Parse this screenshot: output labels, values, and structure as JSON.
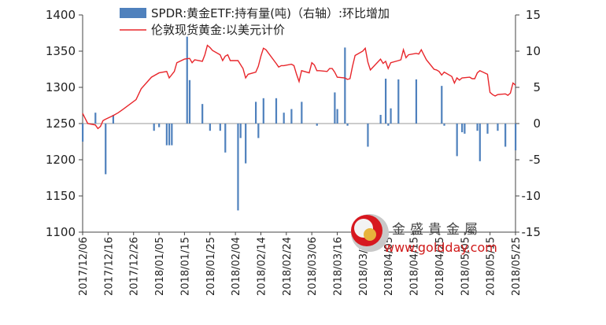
{
  "chart_data": {
    "type": "bar+line",
    "title": "",
    "series": [
      {
        "name": "SPDR:黄金ETF:持有量(吨)（右轴）:环比增加",
        "kind": "bar",
        "axis": "right",
        "color": "#4f81bd",
        "values": [
          {
            "x": "2017-12-06",
            "y": -2.5
          },
          {
            "x": "2017-12-11",
            "y": 1.5
          },
          {
            "x": "2017-12-15",
            "y": -7
          },
          {
            "x": "2017-12-18",
            "y": 1.2
          },
          {
            "x": "2018-01-03",
            "y": -1
          },
          {
            "x": "2018-01-05",
            "y": -0.5
          },
          {
            "x": "2018-01-08",
            "y": -3
          },
          {
            "x": "2018-01-09",
            "y": -3
          },
          {
            "x": "2018-01-10",
            "y": -3
          },
          {
            "x": "2018-01-16",
            "y": 12
          },
          {
            "x": "2018-01-17",
            "y": 6
          },
          {
            "x": "2018-01-22",
            "y": 2.7
          },
          {
            "x": "2018-01-25",
            "y": -1
          },
          {
            "x": "2018-01-29",
            "y": -1
          },
          {
            "x": "2018-01-31",
            "y": -4
          },
          {
            "x": "2018-02-05",
            "y": -12
          },
          {
            "x": "2018-02-06",
            "y": -2
          },
          {
            "x": "2018-02-08",
            "y": -5.5
          },
          {
            "x": "2018-02-12",
            "y": 3
          },
          {
            "x": "2018-02-13",
            "y": -2
          },
          {
            "x": "2018-02-15",
            "y": 3.5
          },
          {
            "x": "2018-02-20",
            "y": 3.5
          },
          {
            "x": "2018-02-23",
            "y": 1.5
          },
          {
            "x": "2018-02-26",
            "y": 2
          },
          {
            "x": "2018-03-02",
            "y": 3
          },
          {
            "x": "2018-03-08",
            "y": -0.3
          },
          {
            "x": "2018-03-15",
            "y": 4.3
          },
          {
            "x": "2018-03-16",
            "y": 2
          },
          {
            "x": "2018-03-19",
            "y": 10.5
          },
          {
            "x": "2018-03-20",
            "y": -0.3
          },
          {
            "x": "2018-03-28",
            "y": -3.2
          },
          {
            "x": "2018-04-02",
            "y": 1.2
          },
          {
            "x": "2018-04-04",
            "y": 6.2
          },
          {
            "x": "2018-04-05",
            "y": -0.3
          },
          {
            "x": "2018-04-06",
            "y": 2.1
          },
          {
            "x": "2018-04-09",
            "y": 6.1
          },
          {
            "x": "2018-04-16",
            "y": 6.1
          },
          {
            "x": "2018-04-26",
            "y": 5.2
          },
          {
            "x": "2018-04-27",
            "y": -0.3
          },
          {
            "x": "2018-05-02",
            "y": -4.5
          },
          {
            "x": "2018-05-04",
            "y": -1.2
          },
          {
            "x": "2018-05-05",
            "y": -1.4
          },
          {
            "x": "2018-05-10",
            "y": -1
          },
          {
            "x": "2018-05-11",
            "y": -5.2
          },
          {
            "x": "2018-05-14",
            "y": -1.4
          },
          {
            "x": "2018-05-18",
            "y": -1
          },
          {
            "x": "2018-05-21",
            "y": -3.2
          },
          {
            "x": "2018-05-25",
            "y": -3.7
          }
        ]
      },
      {
        "name": "伦敦现货黄金:以美元计价",
        "kind": "line",
        "axis": "left",
        "color": "#e8262b",
        "values": [
          {
            "x": "2017-12-06",
            "y": 1264
          },
          {
            "x": "2017-12-08",
            "y": 1250
          },
          {
            "x": "2017-12-11",
            "y": 1248
          },
          {
            "x": "2017-12-12",
            "y": 1243
          },
          {
            "x": "2017-12-13",
            "y": 1246
          },
          {
            "x": "2017-12-14",
            "y": 1254
          },
          {
            "x": "2017-12-15",
            "y": 1256
          },
          {
            "x": "2017-12-18",
            "y": 1261
          },
          {
            "x": "2017-12-20",
            "y": 1265
          },
          {
            "x": "2017-12-22",
            "y": 1270
          },
          {
            "x": "2017-12-27",
            "y": 1283
          },
          {
            "x": "2017-12-29",
            "y": 1298
          },
          {
            "x": "2018-01-02",
            "y": 1314
          },
          {
            "x": "2018-01-05",
            "y": 1320
          },
          {
            "x": "2018-01-08",
            "y": 1322
          },
          {
            "x": "2018-01-09",
            "y": 1313
          },
          {
            "x": "2018-01-11",
            "y": 1322
          },
          {
            "x": "2018-01-12",
            "y": 1334
          },
          {
            "x": "2018-01-15",
            "y": 1339
          },
          {
            "x": "2018-01-17",
            "y": 1340
          },
          {
            "x": "2018-01-18",
            "y": 1334
          },
          {
            "x": "2018-01-19",
            "y": 1338
          },
          {
            "x": "2018-01-22",
            "y": 1336
          },
          {
            "x": "2018-01-23",
            "y": 1345
          },
          {
            "x": "2018-01-24",
            "y": 1358
          },
          {
            "x": "2018-01-25",
            "y": 1355
          },
          {
            "x": "2018-01-26",
            "y": 1351
          },
          {
            "x": "2018-01-29",
            "y": 1345
          },
          {
            "x": "2018-01-30",
            "y": 1337
          },
          {
            "x": "2018-01-31",
            "y": 1343
          },
          {
            "x": "2018-02-01",
            "y": 1345
          },
          {
            "x": "2018-02-02",
            "y": 1337
          },
          {
            "x": "2018-02-05",
            "y": 1337
          },
          {
            "x": "2018-02-07",
            "y": 1326
          },
          {
            "x": "2018-02-08",
            "y": 1313
          },
          {
            "x": "2018-02-09",
            "y": 1318
          },
          {
            "x": "2018-02-12",
            "y": 1321
          },
          {
            "x": "2018-02-13",
            "y": 1329
          },
          {
            "x": "2018-02-14",
            "y": 1343
          },
          {
            "x": "2018-02-15",
            "y": 1354
          },
          {
            "x": "2018-02-16",
            "y": 1352
          },
          {
            "x": "2018-02-20",
            "y": 1333
          },
          {
            "x": "2018-02-21",
            "y": 1328
          },
          {
            "x": "2018-02-22",
            "y": 1330
          },
          {
            "x": "2018-02-23",
            "y": 1330
          },
          {
            "x": "2018-02-26",
            "y": 1332
          },
          {
            "x": "2018-02-27",
            "y": 1330
          },
          {
            "x": "2018-02-28",
            "y": 1318
          },
          {
            "x": "2018-03-01",
            "y": 1308
          },
          {
            "x": "2018-03-02",
            "y": 1323
          },
          {
            "x": "2018-03-05",
            "y": 1320
          },
          {
            "x": "2018-03-06",
            "y": 1334
          },
          {
            "x": "2018-03-07",
            "y": 1331
          },
          {
            "x": "2018-03-08",
            "y": 1323
          },
          {
            "x": "2018-03-09",
            "y": 1323
          },
          {
            "x": "2018-03-12",
            "y": 1322
          },
          {
            "x": "2018-03-13",
            "y": 1326
          },
          {
            "x": "2018-03-14",
            "y": 1326
          },
          {
            "x": "2018-03-15",
            "y": 1321
          },
          {
            "x": "2018-03-16",
            "y": 1314
          },
          {
            "x": "2018-03-19",
            "y": 1313
          },
          {
            "x": "2018-03-20",
            "y": 1311
          },
          {
            "x": "2018-03-21",
            "y": 1312
          },
          {
            "x": "2018-03-22",
            "y": 1329
          },
          {
            "x": "2018-03-23",
            "y": 1344
          },
          {
            "x": "2018-03-26",
            "y": 1350
          },
          {
            "x": "2018-03-27",
            "y": 1354
          },
          {
            "x": "2018-03-28",
            "y": 1335
          },
          {
            "x": "2018-03-29",
            "y": 1324
          },
          {
            "x": "2018-04-02",
            "y": 1339
          },
          {
            "x": "2018-04-03",
            "y": 1333
          },
          {
            "x": "2018-04-04",
            "y": 1336
          },
          {
            "x": "2018-04-05",
            "y": 1326
          },
          {
            "x": "2018-04-06",
            "y": 1334
          },
          {
            "x": "2018-04-09",
            "y": 1337
          },
          {
            "x": "2018-04-10",
            "y": 1338
          },
          {
            "x": "2018-04-11",
            "y": 1352
          },
          {
            "x": "2018-04-12",
            "y": 1341
          },
          {
            "x": "2018-04-13",
            "y": 1345
          },
          {
            "x": "2018-04-16",
            "y": 1347
          },
          {
            "x": "2018-04-17",
            "y": 1346
          },
          {
            "x": "2018-04-18",
            "y": 1352
          },
          {
            "x": "2018-04-19",
            "y": 1345
          },
          {
            "x": "2018-04-20",
            "y": 1338
          },
          {
            "x": "2018-04-23",
            "y": 1325
          },
          {
            "x": "2018-04-24",
            "y": 1324
          },
          {
            "x": "2018-04-25",
            "y": 1322
          },
          {
            "x": "2018-04-26",
            "y": 1317
          },
          {
            "x": "2018-04-27",
            "y": 1321
          },
          {
            "x": "2018-04-30",
            "y": 1315
          },
          {
            "x": "2018-05-01",
            "y": 1306
          },
          {
            "x": "2018-05-02",
            "y": 1313
          },
          {
            "x": "2018-05-03",
            "y": 1310
          },
          {
            "x": "2018-05-04",
            "y": 1313
          },
          {
            "x": "2018-05-07",
            "y": 1314
          },
          {
            "x": "2018-05-08",
            "y": 1312
          },
          {
            "x": "2018-05-09",
            "y": 1312
          },
          {
            "x": "2018-05-10",
            "y": 1320
          },
          {
            "x": "2018-05-11",
            "y": 1323
          },
          {
            "x": "2018-05-14",
            "y": 1318
          },
          {
            "x": "2018-05-15",
            "y": 1293
          },
          {
            "x": "2018-05-16",
            "y": 1290
          },
          {
            "x": "2018-05-17",
            "y": 1288
          },
          {
            "x": "2018-05-18",
            "y": 1290
          },
          {
            "x": "2018-05-21",
            "y": 1291
          },
          {
            "x": "2018-05-22",
            "y": 1289
          },
          {
            "x": "2018-05-23",
            "y": 1292
          },
          {
            "x": "2018-05-24",
            "y": 1306
          },
          {
            "x": "2018-05-25",
            "y": 1303
          }
        ]
      }
    ],
    "x_axis": {
      "range": [
        "2017-12-06",
        "2018-05-25"
      ],
      "tick_labels": [
        "2017/12/06",
        "2017/12/16",
        "2017/12/26",
        "2018/01/05",
        "2018/01/15",
        "2018/01/25",
        "2018/02/04",
        "2018/02/14",
        "2018/02/24",
        "2018/03/06",
        "2018/03/16",
        "2018/03/26",
        "2018/04/05",
        "2018/04/15",
        "2018/04/25",
        "2018/05/05",
        "2018/05/15",
        "2018/05/25"
      ]
    },
    "y_left": {
      "range": [
        1100,
        1400
      ],
      "tick_labels": [
        "1400",
        "1350",
        "1300",
        "1250",
        "1200",
        "1150",
        "1100"
      ]
    },
    "y_right": {
      "range": [
        -15,
        15
      ],
      "tick_labels": [
        "15",
        "10",
        "5",
        "0",
        "-5",
        "-10",
        "-15"
      ]
    },
    "legend": {
      "placement": "top-center",
      "items": [
        {
          "label": "SPDR:黄金ETF:持有量(吨)（右轴）:环比增加",
          "swatch": "bar",
          "color": "#4f81bd"
        },
        {
          "label": "伦敦现货黄金:以美元计价",
          "swatch": "line",
          "color": "#e8262b"
        }
      ]
    },
    "grid": false
  },
  "watermark": {
    "brand_text": "金盛貴金屬",
    "url": "www.goldday.com"
  }
}
